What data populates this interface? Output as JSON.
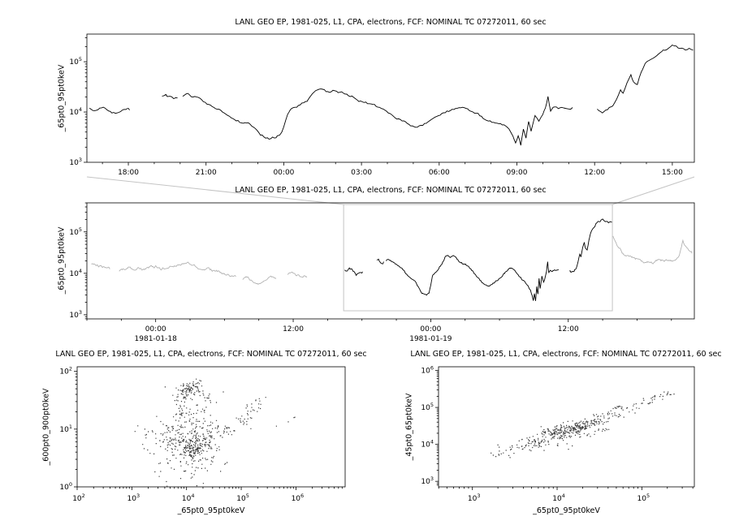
{
  "figure": {
    "bg": "#ffffff",
    "line_color": "#000000",
    "gray_color": "#b3b3b3",
    "box_color": "#c4c4c4",
    "dot_color": "#1a1a1a"
  },
  "chart_data": [
    {
      "id": "top",
      "type": "line",
      "title": "LANL GEO EP, 1981-025, L1, CPA, electrons, FCF: NOMINAL TC 07272011, 60 sec",
      "ylabel": "_65pt0_95pt0keV",
      "x_range": [
        16.4,
        39.85
      ],
      "x_major_ticks": [
        18,
        21,
        24,
        27,
        30,
        33,
        36,
        39
      ],
      "x_tick_labels": [
        "18:00",
        "21:00",
        "00:00",
        "03:00",
        "06:00",
        "09:00",
        "12:00",
        "15:00"
      ],
      "x_minor_step": 1,
      "y_log_range": [
        3,
        5.55
      ],
      "y_major_exponents": [
        3,
        4,
        5
      ],
      "segments": [
        [
          [
            16.5,
            4.09
          ],
          [
            16.7,
            4.06
          ],
          [
            16.9,
            4.1
          ],
          [
            17.1,
            4.07
          ],
          [
            17.3,
            4.03
          ],
          [
            17.5,
            3.99
          ],
          [
            17.7,
            4.03
          ],
          [
            17.9,
            4.06
          ],
          [
            18.05,
            4.04
          ]
        ],
        [
          [
            19.3,
            4.33
          ],
          [
            19.45,
            4.36
          ],
          [
            19.6,
            4.3
          ],
          [
            19.75,
            4.26
          ],
          [
            19.9,
            4.28
          ]
        ],
        [
          [
            20.1,
            4.3
          ],
          [
            20.3,
            4.33
          ],
          [
            20.5,
            4.28
          ],
          [
            20.7,
            4.25
          ],
          [
            20.9,
            4.2
          ],
          [
            21.1,
            4.16
          ],
          [
            21.3,
            4.12
          ],
          [
            21.5,
            4.08
          ],
          [
            21.7,
            4.02
          ],
          [
            21.9,
            3.95
          ],
          [
            22.1,
            3.88
          ],
          [
            22.3,
            3.83
          ],
          [
            22.5,
            3.8
          ],
          [
            22.7,
            3.76
          ],
          [
            22.9,
            3.68
          ],
          [
            23.1,
            3.58
          ],
          [
            23.3,
            3.52
          ],
          [
            23.5,
            3.49
          ],
          [
            23.7,
            3.51
          ],
          [
            23.85,
            3.56
          ],
          [
            24.0,
            3.72
          ],
          [
            24.15,
            3.95
          ],
          [
            24.3,
            4.03
          ],
          [
            24.5,
            4.08
          ],
          [
            24.7,
            4.14
          ],
          [
            24.9,
            4.22
          ],
          [
            25.1,
            4.32
          ],
          [
            25.3,
            4.42
          ],
          [
            25.5,
            4.47
          ],
          [
            25.7,
            4.42
          ],
          [
            25.9,
            4.44
          ],
          [
            26.1,
            4.4
          ],
          [
            26.3,
            4.36
          ],
          [
            26.5,
            4.31
          ],
          [
            26.7,
            4.27
          ],
          [
            26.9,
            4.22
          ],
          [
            27.1,
            4.18
          ],
          [
            27.3,
            4.14
          ],
          [
            27.5,
            4.11
          ],
          [
            27.7,
            4.06
          ],
          [
            27.9,
            4.0
          ],
          [
            28.1,
            3.93
          ],
          [
            28.3,
            3.86
          ],
          [
            28.5,
            3.81
          ],
          [
            28.7,
            3.77
          ],
          [
            28.9,
            3.74
          ],
          [
            29.1,
            3.73
          ],
          [
            29.3,
            3.76
          ],
          [
            29.5,
            3.8
          ],
          [
            29.7,
            3.84
          ],
          [
            29.9,
            3.87
          ],
          [
            30.1,
            3.93
          ],
          [
            30.3,
            3.98
          ],
          [
            30.5,
            4.02
          ],
          [
            30.7,
            4.06
          ],
          [
            30.9,
            4.1
          ],
          [
            31.1,
            4.08
          ],
          [
            31.3,
            4.04
          ],
          [
            31.5,
            3.97
          ],
          [
            31.7,
            3.9
          ],
          [
            31.9,
            3.86
          ],
          [
            32.1,
            3.82
          ],
          [
            32.3,
            3.78
          ],
          [
            32.5,
            3.72
          ],
          [
            32.7,
            3.62
          ],
          [
            32.85,
            3.5
          ],
          [
            32.95,
            3.38
          ],
          [
            33.05,
            3.55
          ],
          [
            33.15,
            3.37
          ],
          [
            33.25,
            3.7
          ],
          [
            33.35,
            3.52
          ],
          [
            33.45,
            3.85
          ],
          [
            33.55,
            3.65
          ],
          [
            33.7,
            3.95
          ],
          [
            33.85,
            3.8
          ],
          [
            34.0,
            3.92
          ],
          [
            34.1,
            4.05
          ],
          [
            34.2,
            4.3
          ],
          [
            34.3,
            4.02
          ],
          [
            34.45,
            4.1
          ],
          [
            34.6,
            4.08
          ],
          [
            34.8,
            4.12
          ],
          [
            35.0,
            4.1
          ],
          [
            35.15,
            4.09
          ]
        ],
        [
          [
            36.1,
            4.06
          ],
          [
            36.3,
            4.02
          ],
          [
            36.5,
            4.08
          ],
          [
            36.7,
            4.16
          ],
          [
            36.85,
            4.28
          ],
          [
            37.0,
            4.48
          ],
          [
            37.1,
            4.4
          ],
          [
            37.25,
            4.62
          ],
          [
            37.4,
            4.78
          ],
          [
            37.5,
            4.62
          ],
          [
            37.65,
            4.55
          ],
          [
            37.8,
            4.8
          ],
          [
            37.95,
            4.95
          ],
          [
            38.1,
            5.02
          ],
          [
            38.25,
            5.08
          ],
          [
            38.4,
            5.16
          ],
          [
            38.55,
            5.21
          ],
          [
            38.7,
            5.24
          ],
          [
            38.85,
            5.27
          ],
          [
            39.0,
            5.3
          ],
          [
            39.15,
            5.28
          ],
          [
            39.3,
            5.24
          ],
          [
            39.5,
            5.21
          ],
          [
            39.65,
            5.24
          ],
          [
            39.8,
            5.23
          ]
        ]
      ]
    },
    {
      "id": "middle",
      "type": "line",
      "title": "LANL GEO EP, 1981-025, L1, CPA, electrons, FCF: NOMINAL TC 07272011, 60 sec",
      "ylabel": "_65pt0_95pt0keV",
      "x_range": [
        -6,
        47
      ],
      "x_major_ticks": [
        0,
        12,
        24,
        36
      ],
      "x_tick_labels": [
        "00:00",
        "12:00",
        "00:00",
        "12:00"
      ],
      "x_date_labels": [
        {
          "tick": 0,
          "label": "1981-01-18"
        },
        {
          "tick": 24,
          "label": "1981-01-19"
        }
      ],
      "x_minor_step": 3,
      "y_log_range": [
        2.9,
        5.7
      ],
      "y_major_exponents": [
        3,
        4,
        5
      ],
      "zoom_box_x": [
        16.4,
        39.85
      ],
      "black_segments_ref": "top",
      "gray_segments": [
        [
          [
            -5.6,
            4.22
          ],
          [
            -5.2,
            4.18
          ],
          [
            -4.8,
            4.16
          ],
          [
            -4.4,
            4.13
          ],
          [
            -4.0,
            4.1
          ]
        ],
        [
          [
            -3.2,
            4.08
          ],
          [
            -2.8,
            4.1
          ],
          [
            -2.4,
            4.12
          ],
          [
            -2.0,
            4.1
          ],
          [
            -1.5,
            4.13
          ],
          [
            -1.0,
            4.11
          ],
          [
            -0.5,
            4.14
          ],
          [
            0.0,
            4.16
          ],
          [
            0.5,
            4.12
          ],
          [
            1.0,
            4.16
          ],
          [
            1.5,
            4.19
          ],
          [
            2.0,
            4.22
          ],
          [
            2.5,
            4.26
          ],
          [
            3.0,
            4.21
          ],
          [
            3.5,
            4.16
          ],
          [
            4.0,
            4.13
          ],
          [
            4.5,
            4.11
          ],
          [
            5.0,
            4.06
          ],
          [
            5.5,
            4.02
          ],
          [
            6.0,
            4.01
          ],
          [
            6.5,
            3.97
          ],
          [
            7.0,
            3.92
          ]
        ],
        [
          [
            7.6,
            3.87
          ],
          [
            8.0,
            3.92
          ],
          [
            8.5,
            3.82
          ],
          [
            9.0,
            3.77
          ],
          [
            9.5,
            3.86
          ],
          [
            10.0,
            3.92
          ],
          [
            10.5,
            3.87
          ]
        ],
        [
          [
            11.5,
            3.96
          ],
          [
            12.0,
            4.0
          ],
          [
            12.6,
            3.96
          ],
          [
            13.2,
            3.92
          ]
        ],
        [
          [
            39.9,
            4.88
          ],
          [
            40.1,
            4.78
          ],
          [
            40.4,
            4.62
          ],
          [
            40.7,
            4.52
          ],
          [
            41.0,
            4.44
          ],
          [
            41.4,
            4.38
          ],
          [
            41.8,
            4.33
          ],
          [
            42.2,
            4.3
          ],
          [
            42.6,
            4.29
          ],
          [
            43.0,
            4.31
          ],
          [
            43.4,
            4.27
          ],
          [
            43.8,
            4.3
          ],
          [
            44.2,
            4.28
          ],
          [
            44.6,
            4.3
          ],
          [
            45.0,
            4.29
          ],
          [
            45.4,
            4.33
          ],
          [
            45.7,
            4.45
          ],
          [
            46.0,
            4.82
          ],
          [
            46.2,
            4.68
          ],
          [
            46.5,
            4.52
          ],
          [
            46.8,
            4.48
          ]
        ]
      ]
    },
    {
      "id": "bottom_left",
      "type": "scatter",
      "title": "LANL GEO EP, 1981-025, L1, CPA, electrons, FCF: NOMINAL TC 07272011, 60 sec",
      "xlabel": "_65pt0_95pt0keV",
      "ylabel": "_600pt0_900pt0keV",
      "x_log_range": [
        2,
        6.9
      ],
      "x_major_exponents": [
        2,
        3,
        4,
        5,
        6
      ],
      "y_log_range": [
        0,
        2.08
      ],
      "y_major_exponents": [
        0,
        1,
        2
      ],
      "seed": 42,
      "clusters": [
        [
          4.08,
          0.75,
          0.28,
          0.2,
          160
        ],
        [
          4.12,
          0.68,
          0.13,
          0.12,
          120
        ],
        [
          3.7,
          0.85,
          0.18,
          0.25,
          50
        ],
        [
          4.05,
          1.73,
          0.1,
          0.07,
          80
        ],
        [
          3.95,
          1.55,
          0.12,
          0.1,
          25
        ],
        [
          3.85,
          1.3,
          0.1,
          0.15,
          20
        ],
        [
          4.0,
          1.15,
          0.12,
          0.18,
          30
        ],
        [
          4.3,
          1.25,
          0.08,
          0.12,
          15
        ],
        [
          4.4,
          1.55,
          0.08,
          0.1,
          12
        ],
        [
          4.45,
          0.95,
          0.12,
          0.1,
          30
        ],
        [
          4.75,
          1.0,
          0.1,
          0.08,
          20
        ],
        [
          5.05,
          1.15,
          0.08,
          0.08,
          15
        ],
        [
          5.2,
          1.32,
          0.06,
          0.08,
          12
        ],
        [
          5.28,
          1.45,
          0.05,
          0.06,
          10
        ],
        [
          4.0,
          0.35,
          0.3,
          0.18,
          35
        ],
        [
          3.3,
          0.9,
          0.12,
          0.2,
          12
        ],
        [
          5.85,
          1.15,
          0.1,
          0.08,
          4
        ]
      ]
    },
    {
      "id": "bottom_right",
      "type": "scatter",
      "title": "LANL GEO EP, 1981-025, L1, CPA, electrons, FCF: NOMINAL TC 07272011, 60 sec",
      "xlabel": "_65pt0_95pt0keV",
      "ylabel": "_45pt0_65pt0keV",
      "x_log_range": [
        2.6,
        5.62
      ],
      "x_major_exponents": [
        3,
        4,
        5
      ],
      "y_log_range": [
        2.85,
        6.1
      ],
      "y_major_exponents": [
        3,
        4,
        5,
        6
      ],
      "seed": 7,
      "clusters": [
        [
          3.35,
          3.73,
          0.08,
          0.07,
          12
        ],
        [
          3.55,
          3.9,
          0.09,
          0.07,
          20
        ],
        [
          3.75,
          4.08,
          0.1,
          0.07,
          35
        ],
        [
          3.95,
          4.26,
          0.1,
          0.07,
          60
        ],
        [
          4.1,
          4.39,
          0.1,
          0.06,
          80
        ],
        [
          4.25,
          4.5,
          0.1,
          0.06,
          70
        ],
        [
          4.4,
          4.62,
          0.1,
          0.06,
          45
        ],
        [
          4.6,
          4.8,
          0.1,
          0.06,
          30
        ],
        [
          4.8,
          4.97,
          0.09,
          0.06,
          20
        ],
        [
          5.0,
          5.15,
          0.08,
          0.06,
          14
        ],
        [
          5.15,
          5.3,
          0.06,
          0.05,
          10
        ],
        [
          5.28,
          5.4,
          0.05,
          0.05,
          8
        ],
        [
          4.15,
          4.25,
          0.15,
          0.05,
          25
        ],
        [
          4.35,
          4.42,
          0.12,
          0.05,
          18
        ],
        [
          3.9,
          4.0,
          0.2,
          0.1,
          15
        ]
      ]
    }
  ]
}
